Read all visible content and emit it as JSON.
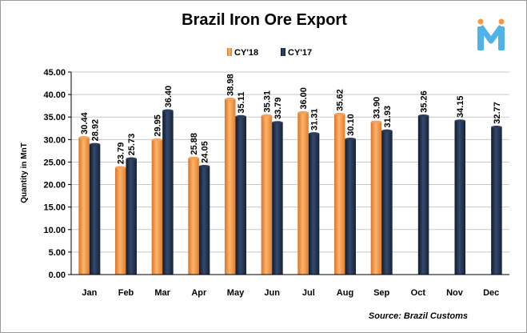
{
  "chart_data": {
    "type": "bar",
    "title": "Brazil Iron Ore Export",
    "ylabel": "Quantity in MnT",
    "xlabel": "",
    "categories": [
      "Jan",
      "Feb",
      "Mar",
      "Apr",
      "May",
      "Jun",
      "Jul",
      "Aug",
      "Sep",
      "Oct",
      "Nov",
      "Dec"
    ],
    "series": [
      {
        "name": "CY'18",
        "color": "#f7983c",
        "values": [
          30.44,
          23.79,
          29.95,
          25.88,
          38.98,
          35.31,
          36.0,
          35.62,
          33.9,
          null,
          null,
          null
        ]
      },
      {
        "name": "CY'17",
        "color": "#1b2a44",
        "values": [
          28.92,
          25.73,
          36.4,
          24.05,
          35.11,
          33.79,
          31.31,
          30.1,
          31.93,
          35.26,
          34.15,
          32.77
        ]
      }
    ],
    "ylim": [
      0,
      45
    ],
    "yticks": [
      "0.00",
      "5.00",
      "10.00",
      "15.00",
      "20.00",
      "25.00",
      "30.00",
      "35.00",
      "40.00",
      "45.00"
    ],
    "grid": true,
    "legend": "top-center",
    "source": "Source: Brazil Customs"
  },
  "logo": {
    "icon": "stylized-m-logo-icon",
    "color": "#4fb3e8"
  }
}
